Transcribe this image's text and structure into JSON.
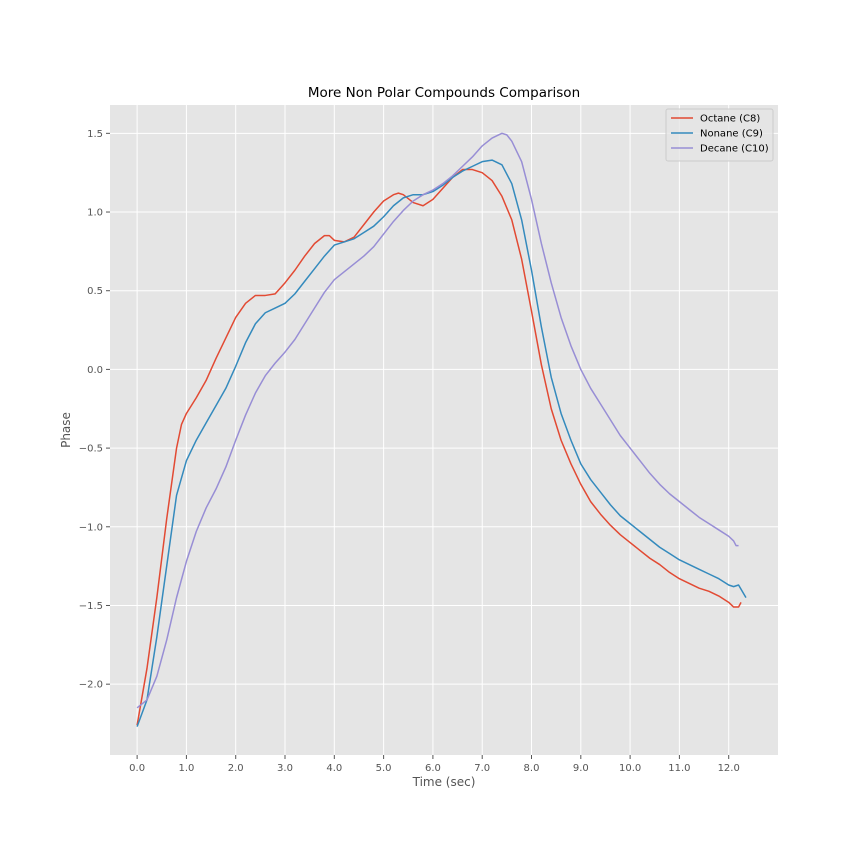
{
  "chart_data": {
    "type": "line",
    "title": "More Non Polar Compounds Comparison",
    "xlabel": "Time (sec)",
    "ylabel": "Phase",
    "xlim": [
      -0.55,
      13.0
    ],
    "ylim": [
      -2.45,
      1.68
    ],
    "xticks": [
      0,
      1,
      2,
      3,
      4,
      5,
      6,
      7,
      8,
      9,
      10,
      11,
      12
    ],
    "xtick_labels": [
      "0.0",
      "1.0",
      "2.0",
      "3.0",
      "4.0",
      "5.0",
      "6.0",
      "7.0",
      "8.0",
      "9.0",
      "10.0",
      "11.0",
      "12.0"
    ],
    "yticks": [
      -2.0,
      -1.5,
      -1.0,
      -0.5,
      0.0,
      0.5,
      1.0,
      1.5
    ],
    "ytick_labels": [
      "−2.0",
      "−1.5",
      "−1.0",
      "−0.5",
      "0.0",
      "0.5",
      "1.0",
      "1.5"
    ],
    "grid": true,
    "legend_position": "top-right",
    "series": [
      {
        "name": "Octane (C8)",
        "color": "#E24A33",
        "x": [
          0.0,
          0.2,
          0.4,
          0.6,
          0.8,
          0.9,
          1.0,
          1.2,
          1.4,
          1.6,
          1.8,
          2.0,
          2.2,
          2.4,
          2.6,
          2.8,
          3.0,
          3.2,
          3.4,
          3.6,
          3.8,
          3.9,
          4.0,
          4.2,
          4.4,
          4.6,
          4.8,
          5.0,
          5.2,
          5.3,
          5.4,
          5.6,
          5.8,
          6.0,
          6.2,
          6.4,
          6.6,
          6.8,
          7.0,
          7.2,
          7.4,
          7.6,
          7.8,
          8.0,
          8.2,
          8.4,
          8.6,
          8.8,
          9.0,
          9.2,
          9.4,
          9.6,
          9.8,
          10.0,
          10.2,
          10.4,
          10.6,
          10.8,
          11.0,
          11.2,
          11.4,
          11.6,
          11.8,
          12.0,
          12.1,
          12.2,
          12.25
        ],
        "y": [
          -2.26,
          -1.9,
          -1.45,
          -0.95,
          -0.5,
          -0.35,
          -0.28,
          -0.18,
          -0.07,
          0.07,
          0.2,
          0.33,
          0.42,
          0.47,
          0.47,
          0.48,
          0.55,
          0.63,
          0.72,
          0.8,
          0.85,
          0.85,
          0.82,
          0.81,
          0.84,
          0.92,
          1.0,
          1.07,
          1.11,
          1.12,
          1.11,
          1.06,
          1.04,
          1.08,
          1.15,
          1.22,
          1.27,
          1.27,
          1.25,
          1.2,
          1.1,
          0.95,
          0.7,
          0.37,
          0.03,
          -0.25,
          -0.45,
          -0.6,
          -0.73,
          -0.84,
          -0.92,
          -0.99,
          -1.05,
          -1.1,
          -1.15,
          -1.2,
          -1.24,
          -1.29,
          -1.33,
          -1.36,
          -1.39,
          -1.41,
          -1.44,
          -1.48,
          -1.51,
          -1.51,
          -1.48
        ]
      },
      {
        "name": "Nonane (C9)",
        "color": "#348ABD",
        "x": [
          0.0,
          0.2,
          0.4,
          0.6,
          0.8,
          1.0,
          1.2,
          1.4,
          1.6,
          1.8,
          2.0,
          2.2,
          2.4,
          2.6,
          2.8,
          3.0,
          3.2,
          3.4,
          3.6,
          3.8,
          4.0,
          4.2,
          4.4,
          4.6,
          4.8,
          5.0,
          5.2,
          5.4,
          5.6,
          5.8,
          6.0,
          6.2,
          6.4,
          6.6,
          6.8,
          7.0,
          7.2,
          7.4,
          7.6,
          7.8,
          8.0,
          8.2,
          8.4,
          8.6,
          8.8,
          9.0,
          9.2,
          9.4,
          9.6,
          9.8,
          10.0,
          10.2,
          10.4,
          10.6,
          10.8,
          11.0,
          11.2,
          11.4,
          11.6,
          11.8,
          12.0,
          12.1,
          12.2,
          12.35
        ],
        "y": [
          -2.27,
          -2.1,
          -1.7,
          -1.25,
          -0.8,
          -0.58,
          -0.45,
          -0.34,
          -0.23,
          -0.12,
          0.02,
          0.17,
          0.29,
          0.36,
          0.39,
          0.42,
          0.48,
          0.56,
          0.64,
          0.72,
          0.79,
          0.81,
          0.83,
          0.87,
          0.91,
          0.97,
          1.04,
          1.09,
          1.11,
          1.11,
          1.13,
          1.17,
          1.22,
          1.26,
          1.29,
          1.32,
          1.33,
          1.3,
          1.18,
          0.95,
          0.63,
          0.27,
          -0.05,
          -0.28,
          -0.45,
          -0.6,
          -0.7,
          -0.78,
          -0.86,
          -0.93,
          -0.98,
          -1.03,
          -1.08,
          -1.13,
          -1.17,
          -1.21,
          -1.24,
          -1.27,
          -1.3,
          -1.33,
          -1.37,
          -1.38,
          -1.37,
          -1.45
        ]
      },
      {
        "name": "Decane (C10)",
        "color": "#988ED5",
        "x": [
          0.0,
          0.2,
          0.4,
          0.6,
          0.8,
          1.0,
          1.2,
          1.4,
          1.6,
          1.8,
          2.0,
          2.2,
          2.4,
          2.6,
          2.8,
          3.0,
          3.2,
          3.4,
          3.6,
          3.8,
          4.0,
          4.2,
          4.4,
          4.6,
          4.8,
          5.0,
          5.2,
          5.4,
          5.6,
          5.8,
          6.0,
          6.2,
          6.4,
          6.6,
          6.8,
          7.0,
          7.2,
          7.4,
          7.5,
          7.6,
          7.8,
          8.0,
          8.2,
          8.4,
          8.6,
          8.8,
          9.0,
          9.2,
          9.4,
          9.6,
          9.8,
          10.0,
          10.2,
          10.4,
          10.6,
          10.8,
          11.0,
          11.2,
          11.4,
          11.6,
          11.8,
          12.0,
          12.1,
          12.15,
          12.2
        ],
        "y": [
          -2.15,
          -2.1,
          -1.95,
          -1.72,
          -1.45,
          -1.22,
          -1.03,
          -0.88,
          -0.76,
          -0.62,
          -0.45,
          -0.29,
          -0.15,
          -0.04,
          0.04,
          0.11,
          0.19,
          0.29,
          0.39,
          0.49,
          0.57,
          0.62,
          0.67,
          0.72,
          0.78,
          0.86,
          0.94,
          1.01,
          1.07,
          1.11,
          1.14,
          1.18,
          1.23,
          1.29,
          1.35,
          1.42,
          1.47,
          1.5,
          1.49,
          1.45,
          1.32,
          1.08,
          0.8,
          0.55,
          0.33,
          0.15,
          0.0,
          -0.12,
          -0.22,
          -0.32,
          -0.42,
          -0.5,
          -0.58,
          -0.66,
          -0.73,
          -0.79,
          -0.84,
          -0.89,
          -0.94,
          -0.98,
          -1.02,
          -1.06,
          -1.09,
          -1.12,
          -1.12
        ]
      }
    ]
  }
}
